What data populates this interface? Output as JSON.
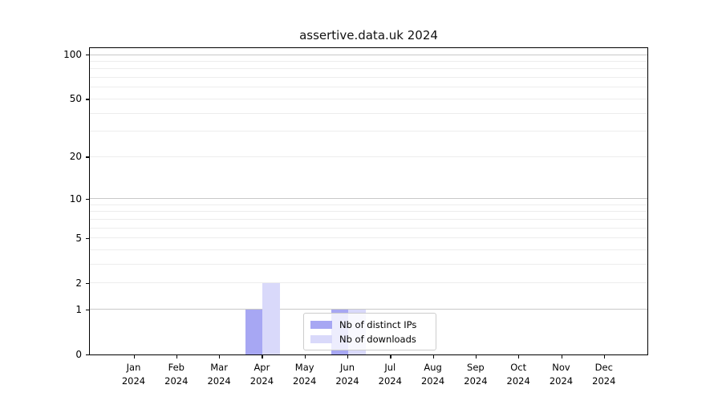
{
  "chart_data": {
    "type": "bar",
    "title": "assertive.data.uk 2024",
    "categories": [
      "Jan",
      "Feb",
      "Mar",
      "Apr",
      "May",
      "Jun",
      "Jul",
      "Aug",
      "Sep",
      "Oct",
      "Nov",
      "Dec"
    ],
    "category_year": "2024",
    "series": [
      {
        "name": "Nb of distinct IPs",
        "color": "#a7a7f3",
        "values": [
          0,
          0,
          0,
          1,
          0,
          1,
          0,
          0,
          0,
          0,
          0,
          0
        ]
      },
      {
        "name": "Nb of downloads",
        "color": "#d9d9fa",
        "values": [
          0,
          0,
          0,
          2,
          0,
          1,
          0,
          0,
          0,
          0,
          0,
          0
        ]
      }
    ],
    "yscale": "log1p",
    "ylim": [
      0,
      113
    ],
    "ytick_labels": [
      100,
      50,
      20,
      10,
      5,
      2,
      1,
      0
    ],
    "grid": {
      "axis": "y",
      "major_values": [
        1,
        10,
        100
      ],
      "major_color": "#c9c9c9",
      "minor_color": "#ededed"
    },
    "legend": {
      "position": "inside-bottom-center"
    },
    "axes_color": "#000000",
    "bar_group": "side-by-side, 21.5px each, centered on month tick"
  }
}
